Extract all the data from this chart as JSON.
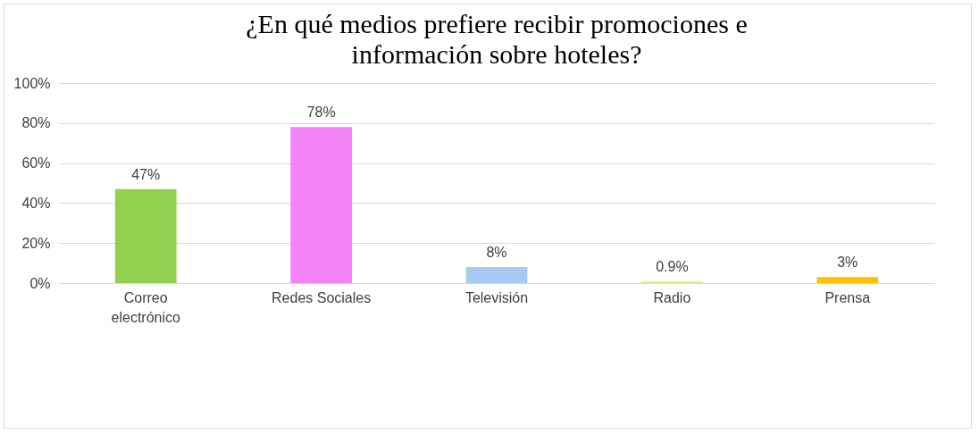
{
  "chart_data": {
    "type": "bar",
    "title": "¿En qué medios prefiere recibir promociones e información sobre hoteles?",
    "categories": [
      "Correo electrónico",
      "Redes Sociales",
      "Televisión",
      "Radio",
      "Prensa"
    ],
    "values": [
      47,
      78,
      8,
      0.9,
      3
    ],
    "colors": [
      "#92d050",
      "#f383f7",
      "#a9c9f5",
      "#e6f08a",
      "#ffc000"
    ],
    "value_labels": [
      "47%",
      "78%",
      "8%",
      "0.9%",
      "3%"
    ],
    "ylim": [
      0,
      100
    ],
    "yticks": [
      {
        "value": 0,
        "label": "0%"
      },
      {
        "value": 20,
        "label": "20%"
      },
      {
        "value": 40,
        "label": "40%"
      },
      {
        "value": 60,
        "label": "60%"
      },
      {
        "value": 80,
        "label": "80%"
      },
      {
        "value": 100,
        "label": "100%"
      }
    ],
    "grid": "y"
  }
}
